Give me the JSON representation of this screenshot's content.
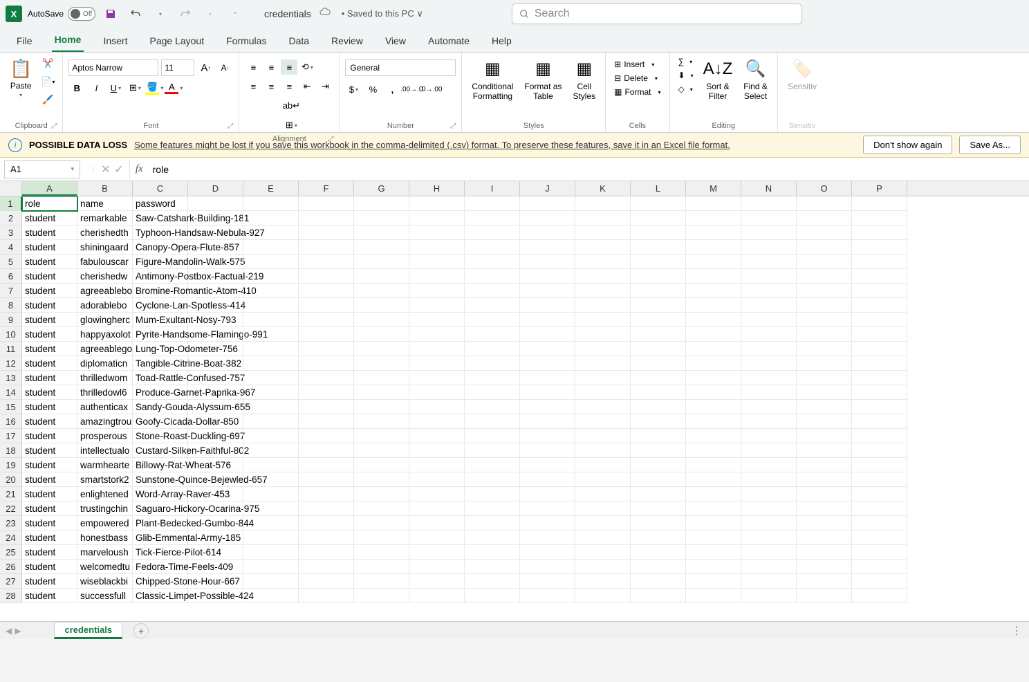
{
  "titlebar": {
    "autosave_label": "AutoSave",
    "autosave_state": "Off",
    "filename": "credentials",
    "save_status": "• Saved to this PC ∨",
    "search_placeholder": "Search"
  },
  "tabs": {
    "file": "File",
    "home": "Home",
    "insert": "Insert",
    "page_layout": "Page Layout",
    "formulas": "Formulas",
    "data": "Data",
    "review": "Review",
    "view": "View",
    "automate": "Automate",
    "help": "Help"
  },
  "ribbon": {
    "clipboard": {
      "paste": "Paste",
      "label": "Clipboard"
    },
    "font": {
      "name": "Aptos Narrow",
      "size": "11",
      "label": "Font"
    },
    "alignment": {
      "label": "Alignment"
    },
    "number": {
      "format": "General",
      "label": "Number"
    },
    "styles": {
      "conditional": "Conditional\nFormatting",
      "table": "Format as\nTable",
      "cell": "Cell\nStyles",
      "label": "Styles"
    },
    "cells": {
      "insert": "Insert",
      "delete": "Delete",
      "format": "Format",
      "label": "Cells"
    },
    "editing": {
      "sort": "Sort &\nFilter",
      "find": "Find &\nSelect",
      "label": "Editing"
    },
    "sensitivity": {
      "btn": "Sensitiv",
      "label": "Sensitiv"
    }
  },
  "warning": {
    "title": "POSSIBLE DATA LOSS",
    "message": "Some features might be lost if you save this workbook in the comma-delimited (.csv) format. To preserve these features, save it in an Excel file format.",
    "dont_show": "Don't show again",
    "save_as": "Save As..."
  },
  "formula_bar": {
    "name_box": "A1",
    "formula": "role"
  },
  "grid": {
    "columns": [
      "A",
      "B",
      "C",
      "D",
      "E",
      "F",
      "G",
      "H",
      "I",
      "J",
      "K",
      "L",
      "M",
      "N",
      "O",
      "P"
    ],
    "selected_cell": "A1",
    "rows": [
      {
        "n": 1,
        "a": "role",
        "b": "name",
        "c": "password"
      },
      {
        "n": 2,
        "a": "student",
        "b": "remarkable",
        "c": "Saw-Catshark-Building-181"
      },
      {
        "n": 3,
        "a": "student",
        "b": "cherishedth",
        "c": "Typhoon-Handsaw-Nebula-927"
      },
      {
        "n": 4,
        "a": "student",
        "b": "shiningaard",
        "c": "Canopy-Opera-Flute-857"
      },
      {
        "n": 5,
        "a": "student",
        "b": "fabulouscar",
        "c": "Figure-Mandolin-Walk-575"
      },
      {
        "n": 6,
        "a": "student",
        "b": "cherishedw",
        "c": "Antimony-Postbox-Factual-219"
      },
      {
        "n": 7,
        "a": "student",
        "b": "agreeablebo",
        "c": "Bromine-Romantic-Atom-410"
      },
      {
        "n": 8,
        "a": "student",
        "b": "adorablebo",
        "c": "Cyclone-Lan-Spotless-414"
      },
      {
        "n": 9,
        "a": "student",
        "b": "glowingherc",
        "c": "Mum-Exultant-Nosy-793"
      },
      {
        "n": 10,
        "a": "student",
        "b": "happyaxolot",
        "c": "Pyrite-Handsome-Flamingo-991"
      },
      {
        "n": 11,
        "a": "student",
        "b": "agreeablego",
        "c": "Lung-Top-Odometer-756"
      },
      {
        "n": 12,
        "a": "student",
        "b": "diplomaticn",
        "c": "Tangible-Citrine-Boat-382"
      },
      {
        "n": 13,
        "a": "student",
        "b": "thrilledwom",
        "c": "Toad-Rattle-Confused-757"
      },
      {
        "n": 14,
        "a": "student",
        "b": "thrilledowl6",
        "c": "Produce-Garnet-Paprika-967"
      },
      {
        "n": 15,
        "a": "student",
        "b": "authenticax",
        "c": "Sandy-Gouda-Alyssum-655"
      },
      {
        "n": 16,
        "a": "student",
        "b": "amazingtrou",
        "c": "Goofy-Cicada-Dollar-850"
      },
      {
        "n": 17,
        "a": "student",
        "b": "prosperous",
        "c": "Stone-Roast-Duckling-697"
      },
      {
        "n": 18,
        "a": "student",
        "b": "intellectualo",
        "c": "Custard-Silken-Faithful-802"
      },
      {
        "n": 19,
        "a": "student",
        "b": "warmhearte",
        "c": "Billowy-Rat-Wheat-576"
      },
      {
        "n": 20,
        "a": "student",
        "b": "smartstork2",
        "c": "Sunstone-Quince-Bejewled-657"
      },
      {
        "n": 21,
        "a": "student",
        "b": "enlightened",
        "c": "Word-Array-Raver-453"
      },
      {
        "n": 22,
        "a": "student",
        "b": "trustingchin",
        "c": "Saguaro-Hickory-Ocarina-975"
      },
      {
        "n": 23,
        "a": "student",
        "b": "empowered",
        "c": "Plant-Bedecked-Gumbo-844"
      },
      {
        "n": 24,
        "a": "student",
        "b": "honestbass",
        "c": "Glib-Emmental-Army-185"
      },
      {
        "n": 25,
        "a": "student",
        "b": "marveloush",
        "c": "Tick-Fierce-Pilot-614"
      },
      {
        "n": 26,
        "a": "student",
        "b": "welcomedtu",
        "c": "Fedora-Time-Feels-409"
      },
      {
        "n": 27,
        "a": "student",
        "b": "wiseblackbi",
        "c": "Chipped-Stone-Hour-667"
      },
      {
        "n": 28,
        "a": "student",
        "b": "successfull",
        "c": "Classic-Limpet-Possible-424"
      }
    ]
  },
  "sheet": {
    "name": "credentials"
  }
}
